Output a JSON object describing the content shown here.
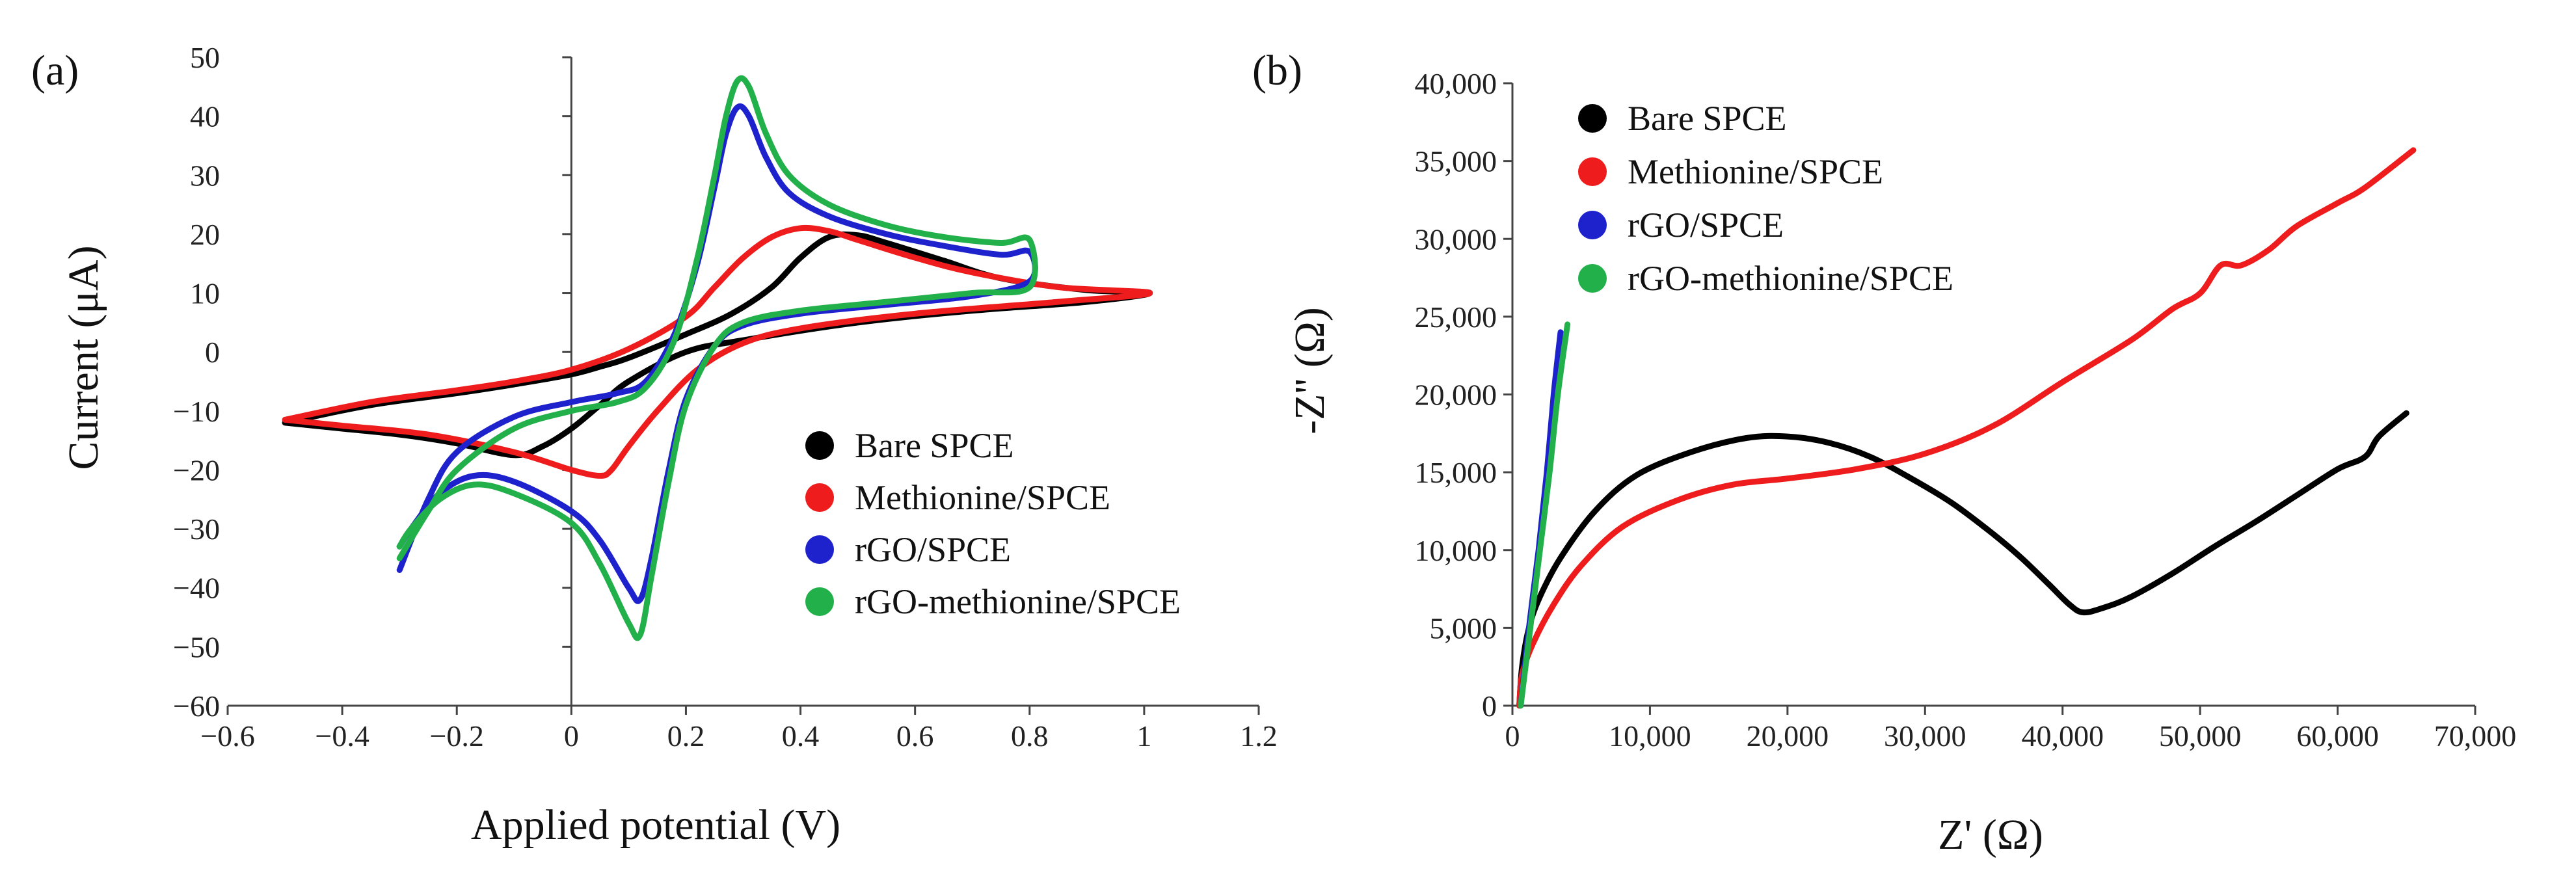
{
  "chart_data": [
    {
      "panel": "(a)",
      "type": "line",
      "title": "",
      "xlabel": "Applied potential (V)",
      "ylabel": "Current (μA)",
      "xlim": [
        -0.6,
        1.2
      ],
      "ylim": [
        -60,
        50
      ],
      "xticks": [
        -0.6,
        -0.4,
        -0.2,
        0,
        0.2,
        0.4,
        0.6,
        0.8,
        1.0,
        1.2
      ],
      "xtick_labels": [
        "−0.6",
        "−0.4",
        "−0.2",
        "0",
        "0.2",
        "0.4",
        "0.6",
        "0.8",
        "1",
        "1.2"
      ],
      "yticks": [
        -60,
        -50,
        -40,
        -30,
        -20,
        -10,
        0,
        10,
        20,
        30,
        40,
        50
      ],
      "ytick_labels": [
        "−60",
        "−50",
        "−40",
        "−30",
        "−20",
        "−10",
        "0",
        "10",
        "20",
        "30",
        "40",
        "50"
      ],
      "legend_position": "lower-right",
      "series": [
        {
          "name": "Bare SPCE",
          "color": "#000000",
          "points": [
            [
              -0.5,
              -12
            ],
            [
              -0.35,
              -9
            ],
            [
              -0.2,
              -7
            ],
            [
              -0.1,
              -5.5
            ],
            [
              0,
              -3.8
            ],
            [
              0.05,
              -2.5
            ],
            [
              0.1,
              -1
            ],
            [
              0.2,
              3
            ],
            [
              0.28,
              6.5
            ],
            [
              0.35,
              11
            ],
            [
              0.4,
              16
            ],
            [
              0.45,
              19.5
            ],
            [
              0.5,
              19.8
            ],
            [
              0.55,
              18.5
            ],
            [
              0.65,
              15.5
            ],
            [
              0.75,
              12.5
            ],
            [
              0.9,
              10.5
            ],
            [
              1.01,
              10
            ],
            [
              0.9,
              8.5
            ],
            [
              0.7,
              7
            ],
            [
              0.5,
              5
            ],
            [
              0.3,
              2
            ],
            [
              0.2,
              0
            ],
            [
              0.1,
              -5
            ],
            [
              0.05,
              -9
            ],
            [
              0,
              -13
            ],
            [
              -0.05,
              -16
            ],
            [
              -0.1,
              -17.5
            ],
            [
              -0.2,
              -15.5
            ],
            [
              -0.3,
              -14
            ],
            [
              -0.4,
              -13
            ],
            [
              -0.5,
              -12
            ]
          ]
        },
        {
          "name": "Methionine/SPCE",
          "color": "#ee1c1c",
          "points": [
            [
              -0.5,
              -11.5
            ],
            [
              -0.35,
              -8.5
            ],
            [
              -0.2,
              -6.5
            ],
            [
              -0.1,
              -5
            ],
            [
              0,
              -3
            ],
            [
              0.1,
              0.5
            ],
            [
              0.2,
              6
            ],
            [
              0.25,
              11
            ],
            [
              0.3,
              16
            ],
            [
              0.35,
              19.5
            ],
            [
              0.4,
              21
            ],
            [
              0.45,
              20.5
            ],
            [
              0.5,
              19
            ],
            [
              0.6,
              16
            ],
            [
              0.7,
              13.5
            ],
            [
              0.85,
              11
            ],
            [
              1.01,
              10
            ],
            [
              0.85,
              8.5
            ],
            [
              0.6,
              6.5
            ],
            [
              0.4,
              4
            ],
            [
              0.3,
              1.5
            ],
            [
              0.22,
              -3
            ],
            [
              0.15,
              -10
            ],
            [
              0.1,
              -16
            ],
            [
              0.07,
              -20
            ],
            [
              0.05,
              -21
            ],
            [
              0,
              -20
            ],
            [
              -0.1,
              -17
            ],
            [
              -0.25,
              -14
            ],
            [
              -0.4,
              -12.5
            ],
            [
              -0.5,
              -11.5
            ]
          ]
        },
        {
          "name": "rGO/SPCE",
          "color": "#1e22cc",
          "points": [
            [
              -0.3,
              -37
            ],
            [
              -0.25,
              -25
            ],
            [
              -0.2,
              -17
            ],
            [
              -0.1,
              -11
            ],
            [
              0,
              -8.5
            ],
            [
              0.08,
              -7
            ],
            [
              0.13,
              -5
            ],
            [
              0.18,
              3
            ],
            [
              0.22,
              15
            ],
            [
              0.25,
              28
            ],
            [
              0.27,
              37
            ],
            [
              0.29,
              41.5
            ],
            [
              0.31,
              40
            ],
            [
              0.34,
              33
            ],
            [
              0.38,
              27
            ],
            [
              0.45,
              23
            ],
            [
              0.55,
              20
            ],
            [
              0.65,
              18
            ],
            [
              0.75,
              16.5
            ],
            [
              0.8,
              17
            ],
            [
              0.8,
              12
            ],
            [
              0.7,
              9.5
            ],
            [
              0.55,
              8
            ],
            [
              0.4,
              6.5
            ],
            [
              0.3,
              4.5
            ],
            [
              0.25,
              1
            ],
            [
              0.2,
              -8
            ],
            [
              0.17,
              -20
            ],
            [
              0.14,
              -35
            ],
            [
              0.12,
              -42
            ],
            [
              0.1,
              -40
            ],
            [
              0.05,
              -32
            ],
            [
              0,
              -27
            ],
            [
              -0.1,
              -22
            ],
            [
              -0.17,
              -21
            ],
            [
              -0.23,
              -24
            ],
            [
              -0.28,
              -30
            ],
            [
              -0.3,
              -33
            ]
          ]
        },
        {
          "name": "rGO-methionine/SPCE",
          "color": "#22b04b",
          "points": [
            [
              -0.3,
              -35
            ],
            [
              -0.25,
              -27
            ],
            [
              -0.2,
              -20
            ],
            [
              -0.1,
              -13
            ],
            [
              0,
              -10
            ],
            [
              0.08,
              -8.5
            ],
            [
              0.13,
              -6
            ],
            [
              0.18,
              2
            ],
            [
              0.22,
              16
            ],
            [
              0.25,
              30
            ],
            [
              0.27,
              40
            ],
            [
              0.29,
              46
            ],
            [
              0.31,
              45
            ],
            [
              0.34,
              37
            ],
            [
              0.38,
              30
            ],
            [
              0.45,
              25
            ],
            [
              0.55,
              21.5
            ],
            [
              0.65,
              19.5
            ],
            [
              0.75,
              18.5
            ],
            [
              0.8,
              19
            ],
            [
              0.8,
              11
            ],
            [
              0.7,
              10
            ],
            [
              0.55,
              8.5
            ],
            [
              0.4,
              7
            ],
            [
              0.3,
              5
            ],
            [
              0.25,
              1
            ],
            [
              0.2,
              -9
            ],
            [
              0.17,
              -22
            ],
            [
              0.14,
              -38
            ],
            [
              0.12,
              -48
            ],
            [
              0.1,
              -46
            ],
            [
              0.05,
              -36
            ],
            [
              0,
              -29
            ],
            [
              -0.1,
              -24
            ],
            [
              -0.17,
              -22.5
            ],
            [
              -0.23,
              -25
            ],
            [
              -0.28,
              -30
            ],
            [
              -0.3,
              -33
            ]
          ]
        }
      ]
    },
    {
      "panel": "(b)",
      "type": "line",
      "title": "",
      "xlabel": "Z' (Ω)",
      "ylabel": "-Z'' (Ω)",
      "xlim": [
        0,
        70000
      ],
      "ylim": [
        0,
        40000
      ],
      "xticks": [
        0,
        10000,
        20000,
        30000,
        40000,
        50000,
        60000,
        70000
      ],
      "xtick_labels": [
        "0",
        "10,000",
        "20,000",
        "30,000",
        "40,000",
        "50,000",
        "60,000",
        "70,000"
      ],
      "yticks": [
        0,
        5000,
        10000,
        15000,
        20000,
        25000,
        30000,
        35000,
        40000
      ],
      "ytick_labels": [
        "0",
        "5,000",
        "10,000",
        "15,000",
        "20,000",
        "25,000",
        "30,000",
        "35,000",
        "40,000"
      ],
      "legend_position": "top-left",
      "series": [
        {
          "name": "Bare SPCE",
          "color": "#000000",
          "points": [
            [
              500,
              0
            ],
            [
              700,
              2500
            ],
            [
              1200,
              5000
            ],
            [
              2000,
              7000
            ],
            [
              3500,
              9500
            ],
            [
              6000,
              12500
            ],
            [
              9000,
              14800
            ],
            [
              13000,
              16300
            ],
            [
              17000,
              17200
            ],
            [
              20000,
              17300
            ],
            [
              23000,
              16900
            ],
            [
              26000,
              16000
            ],
            [
              29000,
              14600
            ],
            [
              32000,
              13000
            ],
            [
              35000,
              11000
            ],
            [
              37000,
              9500
            ],
            [
              39000,
              7800
            ],
            [
              40500,
              6500
            ],
            [
              41500,
              6000
            ],
            [
              43000,
              6300
            ],
            [
              45000,
              7000
            ],
            [
              48000,
              8500
            ],
            [
              51000,
              10200
            ],
            [
              54000,
              11800
            ],
            [
              57000,
              13500
            ],
            [
              60000,
              15200
            ],
            [
              62000,
              16000
            ],
            [
              63000,
              17300
            ],
            [
              65000,
              18800
            ]
          ]
        },
        {
          "name": "Methionine/SPCE",
          "color": "#ee1c1c",
          "points": [
            [
              500,
              0
            ],
            [
              700,
              2000
            ],
            [
              1500,
              4000
            ],
            [
              3000,
              6500
            ],
            [
              5000,
              9000
            ],
            [
              8000,
              11500
            ],
            [
              12000,
              13200
            ],
            [
              16000,
              14200
            ],
            [
              20000,
              14600
            ],
            [
              25000,
              15200
            ],
            [
              30000,
              16200
            ],
            [
              35000,
              18000
            ],
            [
              40000,
              20800
            ],
            [
              45000,
              23500
            ],
            [
              48000,
              25500
            ],
            [
              50000,
              26500
            ],
            [
              51500,
              28300
            ],
            [
              53000,
              28300
            ],
            [
              55000,
              29300
            ],
            [
              57000,
              30800
            ],
            [
              60000,
              32300
            ],
            [
              62000,
              33300
            ],
            [
              65500,
              35700
            ]
          ]
        },
        {
          "name": "rGO/SPCE",
          "color": "#1e22cc",
          "points": [
            [
              600,
              0
            ],
            [
              1200,
              5000
            ],
            [
              1900,
              10000
            ],
            [
              2500,
              15000
            ],
            [
              3000,
              20000
            ],
            [
              3500,
              24000
            ]
          ]
        },
        {
          "name": "rGO-methionine/SPCE",
          "color": "#22b04b",
          "points": [
            [
              600,
              0
            ],
            [
              1300,
              5000
            ],
            [
              2000,
              10000
            ],
            [
              2700,
              15000
            ],
            [
              3300,
              20000
            ],
            [
              4000,
              24500
            ]
          ]
        }
      ]
    }
  ]
}
